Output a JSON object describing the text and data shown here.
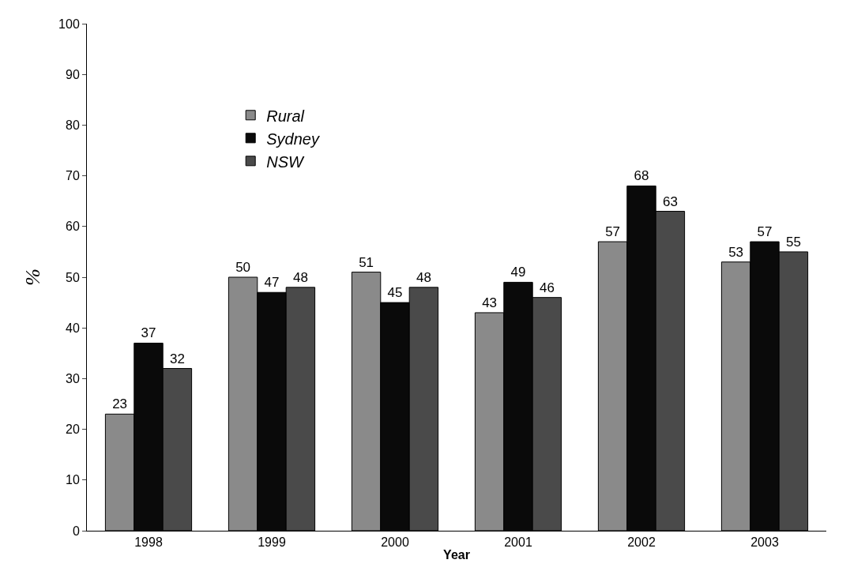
{
  "chart_data": {
    "type": "bar",
    "xlabel": "Year",
    "ylabel": "%",
    "categories": [
      "1998",
      "1999",
      "2000",
      "2001",
      "2002",
      "2003"
    ],
    "series": [
      {
        "name": "Rural",
        "color": "#8a8a8a",
        "values": [
          23,
          50,
          51,
          43,
          57,
          53
        ]
      },
      {
        "name": "Sydney",
        "color": "#0a0a0a",
        "values": [
          37,
          47,
          45,
          49,
          68,
          57
        ]
      },
      {
        "name": "NSW",
        "color": "#4a4a4a",
        "values": [
          32,
          48,
          48,
          46,
          63,
          55
        ]
      }
    ],
    "ylim": [
      0,
      100
    ],
    "yticks": [
      0,
      10,
      20,
      30,
      40,
      50,
      60,
      70,
      80,
      90,
      100
    ],
    "data_labels": true,
    "legend": "top left"
  }
}
